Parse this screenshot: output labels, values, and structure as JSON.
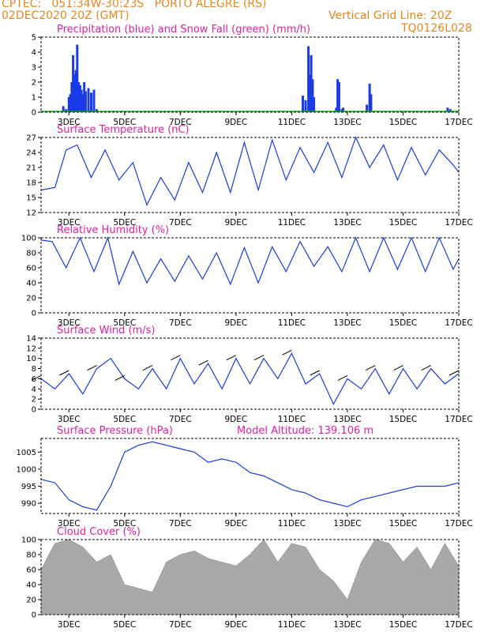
{
  "header": {
    "line1_left": "CPTEC:   051:34W-30:23S   PORTO ALEGRE (RS)",
    "line2_left": "02DEC2020 20Z (GMT)",
    "line1_right": "Vertical Grid Line: 20Z",
    "line2_right": "TQ0126L028"
  },
  "colors": {
    "header": "#e8871e",
    "title": "#e020a0",
    "series": "#1a3be6",
    "snow": "#17a51a",
    "cloud": "#a9a9a9"
  },
  "chart_data": [
    {
      "type": "bar",
      "title": "Precipitation (blue) and Snow Fall (green) (mm/h)",
      "x_ticks": [
        "3DEC",
        "5DEC",
        "7DEC",
        "9DEC",
        "11DEC",
        "13DEC",
        "15DEC",
        "17DEC"
      ],
      "ylim": [
        0,
        5
      ],
      "yticks": [
        0,
        1,
        2,
        3,
        4,
        5
      ],
      "series": [
        {
          "name": "Precipitation",
          "x_days": [
            2.8,
            2.9,
            3.0,
            3.05,
            3.1,
            3.15,
            3.2,
            3.25,
            3.3,
            3.35,
            3.4,
            3.45,
            3.5,
            3.55,
            3.6,
            3.7,
            3.8,
            3.9,
            4.0,
            11.4,
            11.5,
            11.6,
            11.65,
            11.7,
            11.75,
            11.8,
            12.6,
            12.65,
            12.7,
            12.8,
            12.85,
            13.7,
            13.8,
            13.85,
            16.6,
            16.7
          ],
          "values": [
            0.4,
            0.2,
            1.0,
            1.2,
            2.0,
            3.8,
            2.5,
            2.8,
            4.5,
            2.0,
            1.8,
            1.5,
            1.2,
            2.0,
            1.4,
            1.6,
            1.3,
            1.5,
            0.2,
            1.1,
            0.8,
            4.4,
            2.5,
            3.8,
            2.2,
            1.0,
            0.3,
            2.2,
            2.0,
            0.2,
            0.3,
            0.5,
            1.9,
            1.2,
            0.3,
            0.2
          ]
        },
        {
          "name": "Snow Fall",
          "values": []
        }
      ]
    },
    {
      "type": "line",
      "title": "Surface Temperature (nC)",
      "x_ticks": [
        "3DEC",
        "5DEC",
        "7DEC",
        "9DEC",
        "11DEC",
        "13DEC",
        "15DEC",
        "17DEC"
      ],
      "ylim": [
        12,
        27
      ],
      "yticks": [
        12,
        15,
        18,
        21,
        24,
        27
      ],
      "x_days": [
        2.0,
        2.5,
        2.9,
        3.3,
        3.8,
        4.3,
        4.8,
        5.3,
        5.8,
        6.3,
        6.8,
        7.3,
        7.8,
        8.3,
        8.8,
        9.3,
        9.8,
        10.3,
        10.8,
        11.3,
        11.8,
        12.3,
        12.8,
        13.3,
        13.8,
        14.3,
        14.8,
        15.3,
        15.8,
        16.3,
        16.8,
        17.0
      ],
      "values": [
        16.5,
        17,
        24.5,
        25.5,
        19,
        24.5,
        18.5,
        22,
        13.5,
        19,
        14.5,
        22,
        16,
        24,
        16,
        26,
        16.5,
        26.5,
        18.5,
        25,
        20,
        26,
        19,
        27,
        21,
        25.5,
        18.5,
        25,
        19.5,
        24.5,
        21.5,
        20
      ]
    },
    {
      "type": "line",
      "title": "Relative Humidity (%)",
      "x_ticks": [
        "3DEC",
        "5DEC",
        "7DEC",
        "9DEC",
        "11DEC",
        "13DEC",
        "15DEC",
        "17DEC"
      ],
      "ylim": [
        0,
        100
      ],
      "yticks": [
        0,
        20,
        40,
        60,
        80,
        100
      ],
      "x_days": [
        2.0,
        2.4,
        2.9,
        3.4,
        3.9,
        4.4,
        4.8,
        5.3,
        5.8,
        6.3,
        6.8,
        7.3,
        7.8,
        8.3,
        8.8,
        9.3,
        9.8,
        10.3,
        10.8,
        11.3,
        11.8,
        12.3,
        12.8,
        13.3,
        13.8,
        14.3,
        14.8,
        15.3,
        15.8,
        16.3,
        16.8,
        17.0
      ],
      "values": [
        97,
        95,
        60,
        100,
        55,
        100,
        38,
        82,
        40,
        72,
        42,
        76,
        45,
        80,
        38,
        87,
        40,
        88,
        55,
        95,
        62,
        88,
        55,
        100,
        55,
        100,
        58,
        100,
        55,
        100,
        58,
        72
      ]
    },
    {
      "type": "line",
      "title": "Surface Wind (m/s)",
      "x_ticks": [
        "3DEC",
        "5DEC",
        "7DEC",
        "9DEC",
        "11DEC",
        "13DEC",
        "15DEC",
        "17DEC"
      ],
      "ylim": [
        0,
        14
      ],
      "yticks": [
        0,
        2,
        4,
        6,
        8,
        10,
        12,
        14
      ],
      "x_days": [
        2.0,
        2.5,
        3.0,
        3.5,
        4.0,
        4.5,
        5.0,
        5.5,
        6.0,
        6.5,
        7.0,
        7.5,
        8.0,
        8.5,
        9.0,
        9.5,
        10.0,
        10.5,
        11.0,
        11.5,
        12.0,
        12.5,
        13.0,
        13.5,
        14.0,
        14.5,
        15.0,
        15.5,
        16.0,
        16.5,
        17.0
      ],
      "values": [
        6,
        4,
        7,
        3,
        8,
        10,
        6,
        4,
        8,
        4,
        10,
        5,
        9,
        4,
        10,
        5,
        10,
        6,
        11,
        5,
        7,
        1,
        6,
        4,
        8,
        3,
        8,
        4,
        8,
        5,
        7
      ]
    },
    {
      "type": "line",
      "title": "Surface Pressure (hPa)",
      "annotation": "Model Altitude: 139.106 m",
      "x_ticks": [
        "3DEC",
        "5DEC",
        "7DEC",
        "9DEC",
        "11DEC",
        "13DEC",
        "15DEC",
        "17DEC"
      ],
      "ylim": [
        987,
        1009
      ],
      "yticks": [
        990,
        995,
        1000,
        1005
      ],
      "x_days": [
        2.0,
        2.5,
        3.0,
        3.5,
        4.0,
        4.5,
        5.0,
        5.5,
        6.0,
        6.5,
        7.0,
        7.5,
        8.0,
        8.5,
        9.0,
        9.5,
        10.0,
        10.5,
        11.0,
        11.5,
        12.0,
        12.5,
        13.0,
        13.5,
        14.0,
        14.5,
        15.0,
        15.5,
        16.0,
        16.5,
        17.0
      ],
      "values": [
        997,
        996,
        991,
        989,
        988,
        995,
        1005,
        1007,
        1008,
        1007,
        1006,
        1005,
        1002,
        1003,
        1002,
        999,
        998,
        996,
        994,
        993,
        991,
        990,
        989,
        991,
        992,
        993,
        994,
        995,
        995,
        995,
        996
      ]
    },
    {
      "type": "area",
      "title": "Cloud Cover (%)",
      "x_ticks": [
        "3DEC",
        "5DEC",
        "7DEC",
        "9DEC",
        "11DEC",
        "13DEC",
        "15DEC",
        "17DEC"
      ],
      "ylim": [
        0,
        100
      ],
      "yticks": [
        0,
        20,
        40,
        60,
        80,
        100
      ],
      "x_days": [
        2.0,
        2.5,
        3.0,
        3.5,
        4.0,
        4.5,
        5.0,
        5.5,
        6.0,
        6.5,
        7.0,
        7.5,
        8.0,
        8.5,
        9.0,
        9.5,
        10.0,
        10.5,
        11.0,
        11.5,
        12.0,
        12.5,
        13.0,
        13.5,
        14.0,
        14.5,
        15.0,
        15.5,
        16.0,
        16.5,
        17.0
      ],
      "values": [
        60,
        95,
        100,
        90,
        70,
        80,
        40,
        35,
        30,
        70,
        80,
        85,
        75,
        70,
        65,
        80,
        100,
        70,
        95,
        90,
        60,
        45,
        20,
        70,
        100,
        95,
        70,
        90,
        60,
        95,
        65
      ]
    }
  ]
}
